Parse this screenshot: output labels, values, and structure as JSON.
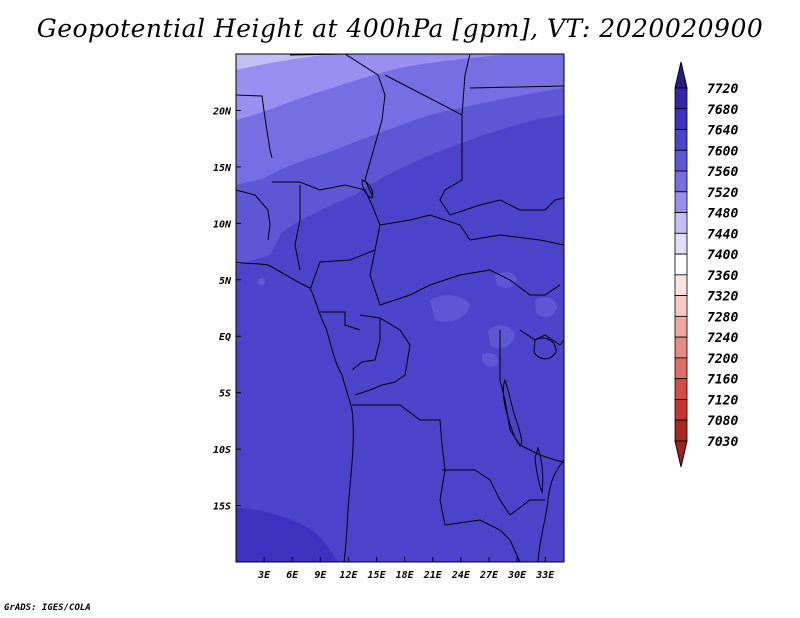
{
  "title": "Geopotential Height at 400hPa [gpm], VT: 2020020900",
  "credit": "GrADS: IGES/COLA",
  "map": {
    "lon_range": [
      0,
      35
    ],
    "lat_range": [
      -20,
      25
    ],
    "lon_ticks": [
      {
        "value": 3,
        "label": "3E"
      },
      {
        "value": 6,
        "label": "6E"
      },
      {
        "value": 9,
        "label": "9E"
      },
      {
        "value": 12,
        "label": "12E"
      },
      {
        "value": 15,
        "label": "15E"
      },
      {
        "value": 18,
        "label": "18E"
      },
      {
        "value": 21,
        "label": "21E"
      },
      {
        "value": 24,
        "label": "24E"
      },
      {
        "value": 27,
        "label": "27E"
      },
      {
        "value": 30,
        "label": "30E"
      },
      {
        "value": 33,
        "label": "33E"
      }
    ],
    "lat_ticks": [
      {
        "value": 20,
        "label": "20N"
      },
      {
        "value": 15,
        "label": "15N"
      },
      {
        "value": 10,
        "label": "10N"
      },
      {
        "value": 5,
        "label": "5N"
      },
      {
        "value": 0,
        "label": "EQ"
      },
      {
        "value": -5,
        "label": "5S"
      },
      {
        "value": -10,
        "label": "10S"
      },
      {
        "value": -15,
        "label": "15S"
      }
    ]
  },
  "colorbar": {
    "levels": [
      {
        "label": "7720",
        "color": "#2e1e9a"
      },
      {
        "label": "7680",
        "color": "#3424ac"
      },
      {
        "label": "7640",
        "color": "#3d32bf"
      },
      {
        "label": "7600",
        "color": "#4b44ca"
      },
      {
        "label": "7560",
        "color": "#5d57d6"
      },
      {
        "label": "7520",
        "color": "#766fe4"
      },
      {
        "label": "7480",
        "color": "#988ff0"
      },
      {
        "label": "7440",
        "color": "#c4bdf6"
      },
      {
        "label": "7400",
        "color": "#e2def9"
      },
      {
        "label": "7360",
        "color": "#ffffff"
      },
      {
        "label": "7320",
        "color": "#fde4e1"
      },
      {
        "label": "7280",
        "color": "#fac9c4"
      },
      {
        "label": "7240",
        "color": "#f2a6a0"
      },
      {
        "label": "7200",
        "color": "#e88a84"
      },
      {
        "label": "7160",
        "color": "#e06c64"
      },
      {
        "label": "7120",
        "color": "#d84a42"
      },
      {
        "label": "7080",
        "color": "#c6352d"
      },
      {
        "label": "7030",
        "color": "#a82820"
      }
    ],
    "top_color": "#2b1a8e",
    "bottom_color": "#a1221b"
  }
}
